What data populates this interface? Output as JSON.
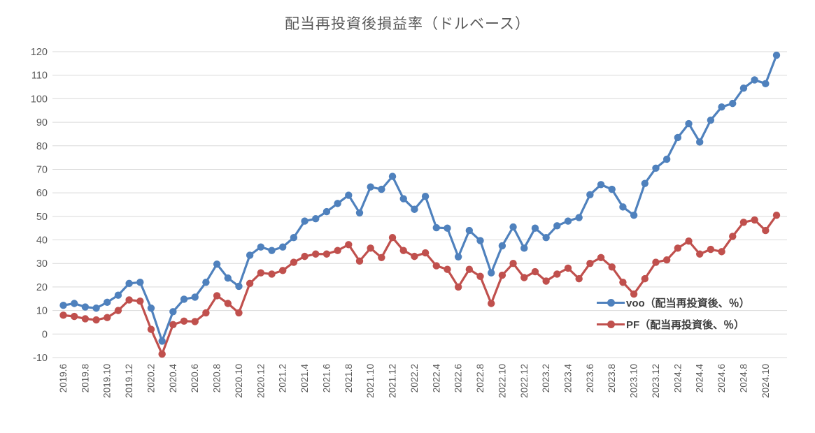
{
  "chart_data": {
    "type": "line",
    "title": "配当再投資後損益率（ドルベース）",
    "xlabel": "",
    "ylabel": "",
    "ylim": [
      -10,
      120
    ],
    "y_ticks": [
      120,
      110,
      100,
      90,
      80,
      70,
      60,
      50,
      40,
      30,
      20,
      10,
      0,
      -10
    ],
    "grid": "horizontal",
    "legend_position": "inside-right-lower",
    "axis_text_color": "#595959",
    "gridline_color": "#d9d9d9",
    "x_tick_labels": [
      "2019.6",
      "2019.8",
      "2019.10",
      "2019.12",
      "2020.2",
      "2020.4",
      "2020.6",
      "2020.8",
      "2020.10",
      "2020.12",
      "2021.2",
      "2021.4",
      "2021.6",
      "2021.8",
      "2021.10",
      "2021.12",
      "2022.2",
      "2022.4",
      "2022.6",
      "2022.8",
      "2022.10",
      "2022.12",
      "2023.2",
      "2023.4",
      "2023.6",
      "2023.8",
      "2023.10",
      "2023.12",
      "2024.2",
      "2024.4",
      "2024.6",
      "2024.8",
      "2024.10"
    ],
    "x": [
      "2019.6",
      "2019.7",
      "2019.8",
      "2019.9",
      "2019.10",
      "2019.11",
      "2019.12",
      "2020.1",
      "2020.2",
      "2020.3",
      "2020.4",
      "2020.5",
      "2020.6",
      "2020.7",
      "2020.8",
      "2020.9",
      "2020.10",
      "2020.11",
      "2020.12",
      "2021.1",
      "2021.2",
      "2021.3",
      "2021.4",
      "2021.5",
      "2021.6",
      "2021.7",
      "2021.8",
      "2021.9",
      "2021.10",
      "2021.11",
      "2021.12",
      "2022.1",
      "2022.2",
      "2022.3",
      "2022.4",
      "2022.5",
      "2022.6",
      "2022.7",
      "2022.8",
      "2022.9",
      "2022.10",
      "2022.11",
      "2022.12",
      "2023.1",
      "2023.2",
      "2023.3",
      "2023.4",
      "2023.5",
      "2023.6",
      "2023.7",
      "2023.8",
      "2023.9",
      "2023.10",
      "2023.11",
      "2023.12",
      "2024.1",
      "2024.2",
      "2024.3",
      "2024.4",
      "2024.5",
      "2024.6",
      "2024.7",
      "2024.8",
      "2024.9",
      "2024.10",
      "2024.11"
    ],
    "series": [
      {
        "name": "voo（配当再投資後、％）",
        "color": "#4f81bd",
        "values": [
          12.2,
          13,
          11.5,
          11,
          13.5,
          16.5,
          21.5,
          22,
          11,
          -3,
          9.5,
          14.8,
          15.7,
          22,
          29.7,
          23.8,
          20.3,
          33.5,
          37,
          35.5,
          37,
          41,
          48,
          49,
          52,
          55.5,
          59,
          51.5,
          62.5,
          61.5,
          67,
          57.5,
          53,
          58.5,
          45.2,
          45,
          32.8,
          44,
          39.7,
          26,
          37.5,
          45.5,
          36.5,
          45,
          41,
          46,
          48,
          49.5,
          59.2,
          63.5,
          61.5,
          54,
          50.5,
          64,
          70.5,
          74.3,
          83.5,
          89.4,
          81.6,
          90.9,
          96.5,
          98,
          104.5,
          108,
          106.4,
          118.5
        ]
      },
      {
        "name": "PF（配当再投資後、％）",
        "color": "#c0504d",
        "values": [
          8,
          7.5,
          6.5,
          6,
          7,
          10,
          14.5,
          14,
          2,
          -8.5,
          4,
          5.5,
          5.3,
          9,
          16.3,
          13,
          9,
          21.5,
          26,
          25.5,
          27,
          30.5,
          33,
          34,
          34,
          35.5,
          38,
          31,
          36.5,
          32.5,
          41,
          35.5,
          33,
          34.5,
          29,
          27.5,
          20,
          27.5,
          24.5,
          13,
          25,
          30,
          24,
          26.5,
          22.5,
          25.5,
          28,
          23.5,
          30,
          32.5,
          28.5,
          22,
          17,
          23.5,
          30.5,
          31.5,
          36.5,
          39.5,
          34,
          36,
          35,
          41.5,
          47.5,
          48.5,
          44,
          50.5
        ]
      }
    ]
  }
}
